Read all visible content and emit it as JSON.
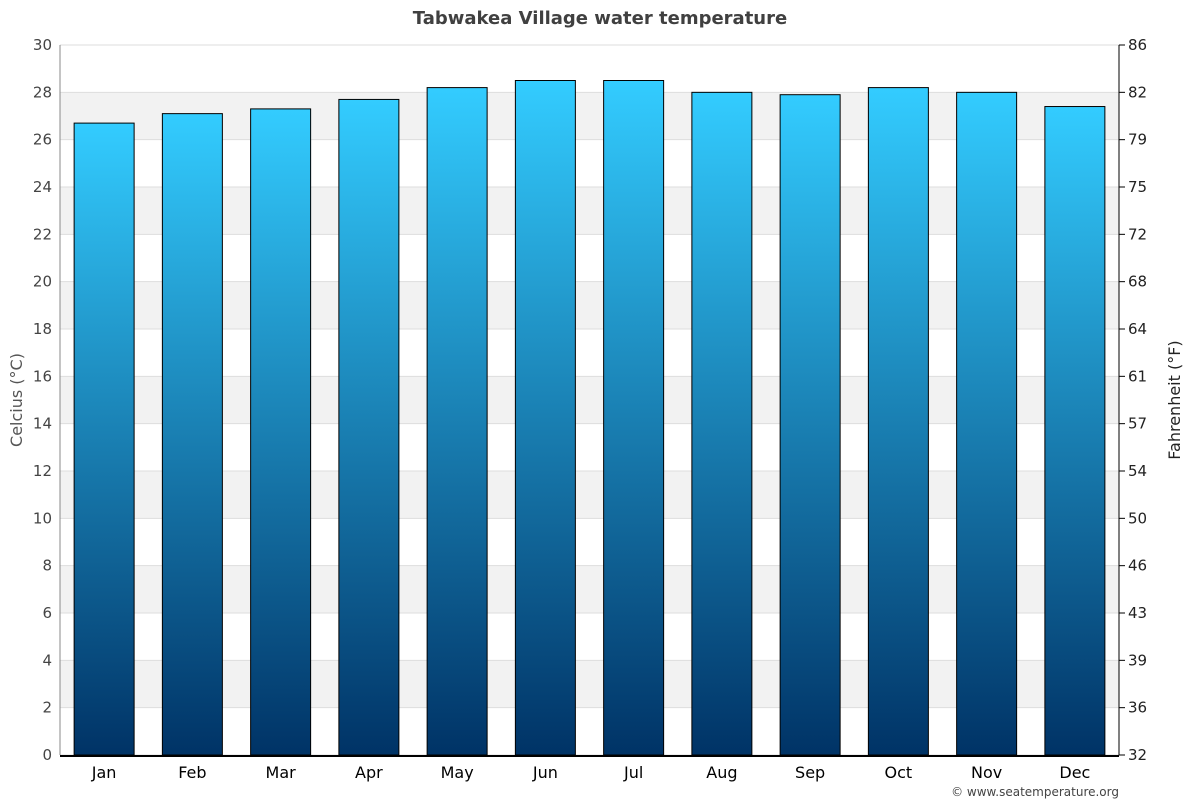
{
  "chart_data": {
    "type": "bar",
    "title": "Tabwakea Village water temperature",
    "ylabel": "Celcius (°C)",
    "y2label": "Fahrenheit (°F)",
    "categories": [
      "Jan",
      "Feb",
      "Mar",
      "Apr",
      "May",
      "Jun",
      "Jul",
      "Aug",
      "Sep",
      "Oct",
      "Nov",
      "Dec"
    ],
    "values": [
      26.7,
      27.1,
      27.3,
      27.7,
      28.2,
      28.5,
      28.5,
      28.0,
      27.9,
      28.2,
      28.0,
      27.4
    ],
    "ylim": [
      0,
      30
    ],
    "yticks": [
      "0",
      "2",
      "4",
      "6",
      "8",
      "10",
      "12",
      "14",
      "16",
      "18",
      "20",
      "22",
      "24",
      "26",
      "28",
      "30"
    ],
    "y2ticks": [
      "32",
      "36",
      "39",
      "43",
      "46",
      "50",
      "54",
      "57",
      "61",
      "64",
      "68",
      "72",
      "75",
      "79",
      "82",
      "86"
    ],
    "grid": true,
    "bar_gradient": [
      "#33ccff",
      "#003366"
    ],
    "band_color": "#f2f2f2"
  },
  "credit": "© www.seatemperature.org"
}
